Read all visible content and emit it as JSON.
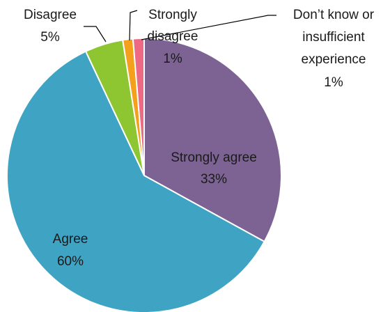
{
  "chart_data": {
    "type": "pie",
    "title": "",
    "start_angle_deg": 0,
    "direction": "clockwise",
    "slices": [
      {
        "label": "Strongly agree",
        "percent_label": "33%",
        "value": 33,
        "color": "#7D6394"
      },
      {
        "label": "Agree",
        "percent_label": "60%",
        "value": 60,
        "color": "#3FA3C4"
      },
      {
        "label": "Disagree",
        "percent_label": "5%",
        "value": 4.5,
        "color": "#8DC630"
      },
      {
        "label": "Strongly disagree",
        "percent_label": "1%",
        "value": 1.2,
        "color": "#F5A01D"
      },
      {
        "label": "Don’t know or insufficient experience",
        "percent_label": "1%",
        "value": 1.3,
        "color": "#EE6A84"
      }
    ]
  }
}
